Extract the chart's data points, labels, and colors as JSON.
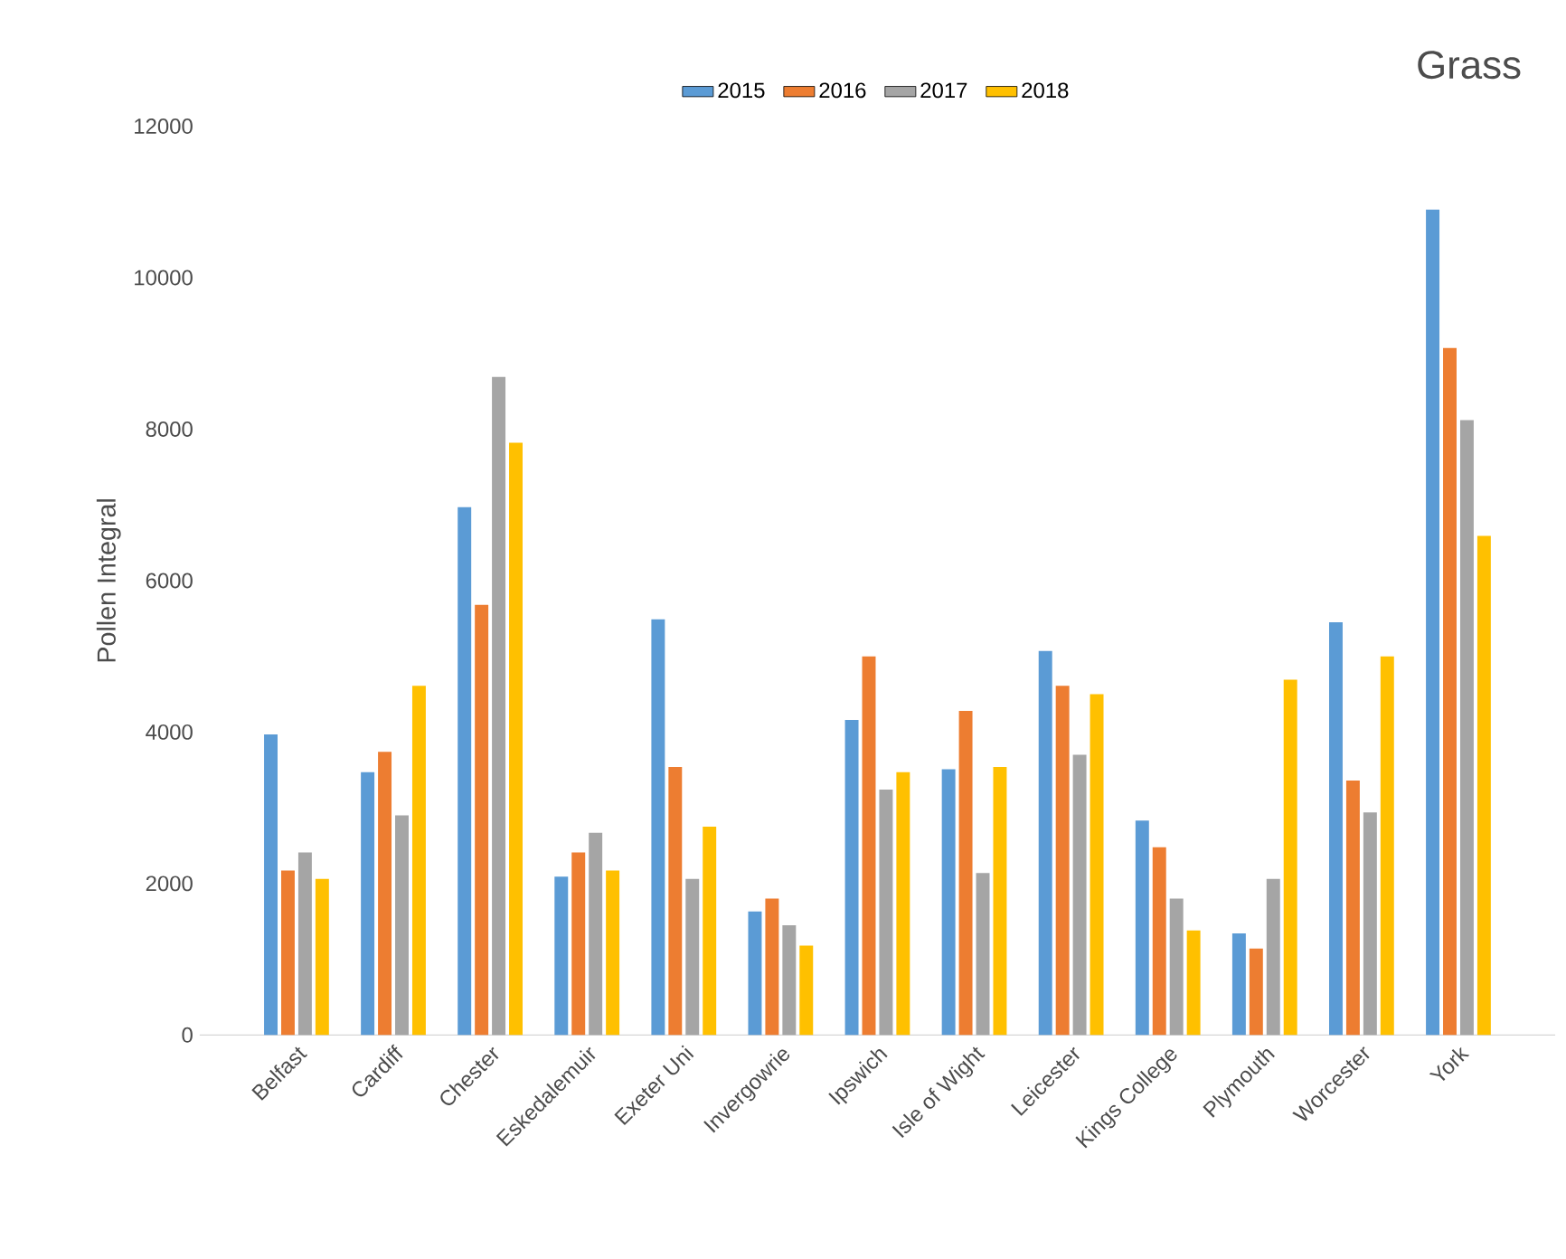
{
  "chart_data": {
    "type": "bar",
    "title": "Grass",
    "ylabel": "Pollen Integral",
    "categories": [
      "Belfast",
      "Cardiff",
      "Chester",
      "Eskedalemuir",
      "Exeter Uni",
      "Invergowrie",
      "Ipswich",
      "Isle of Wight",
      "Leicester",
      "Kings College",
      "Plymouth",
      "Worcester",
      "York"
    ],
    "series": [
      {
        "name": "2015",
        "color": "#5b9bd5",
        "values": [
          3970,
          3470,
          6970,
          2090,
          5490,
          1630,
          4160,
          3510,
          5070,
          2830,
          1340,
          5450,
          10900
        ]
      },
      {
        "name": "2016",
        "color": "#ed7d31",
        "values": [
          2170,
          3740,
          5680,
          2410,
          3540,
          1800,
          5000,
          4280,
          4610,
          2480,
          1140,
          3360,
          9070
        ]
      },
      {
        "name": "2017",
        "color": "#a5a5a5",
        "values": [
          2410,
          2900,
          8690,
          2670,
          2060,
          1450,
          3240,
          2140,
          3700,
          1800,
          2060,
          2940,
          8120
        ]
      },
      {
        "name": "2018",
        "color": "#ffc000",
        "values": [
          2060,
          4610,
          7820,
          2170,
          2750,
          1180,
          3470,
          3540,
          4500,
          1380,
          4690,
          5000,
          6590
        ]
      }
    ],
    "ylim": [
      0,
      12000
    ],
    "yticks": [
      0,
      2000,
      4000,
      6000,
      8000,
      10000,
      12000
    ],
    "grid": false,
    "legend": "top"
  }
}
